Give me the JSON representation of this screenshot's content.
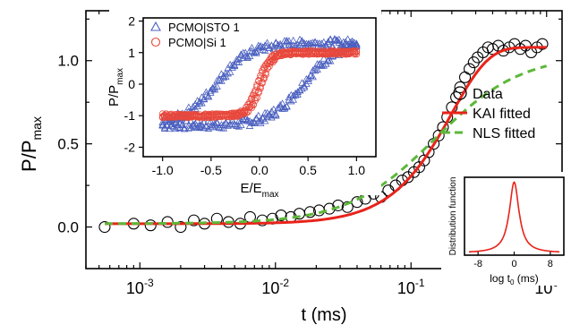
{
  "chart_data": [
    {
      "type": "scatter",
      "xscale": "log",
      "xlim": [
        0.0004,
        1.3
      ],
      "ylim": [
        -0.25,
        1.3
      ],
      "xlabel": "t (ms)",
      "ylabel_main": "P/P",
      "ylabel_sub": "max",
      "xticks": [
        {
          "value": 0.001,
          "base": "10",
          "exp": "-3"
        },
        {
          "value": 0.01,
          "base": "10",
          "exp": "-2"
        },
        {
          "value": 0.1,
          "base": "10",
          "exp": "-1"
        },
        {
          "value": 1,
          "base": "10",
          "exp": "0"
        }
      ],
      "yticks": [
        0.0,
        0.5,
        1.0
      ],
      "ytick_labels": [
        "0.0",
        "0.5",
        "1.0"
      ],
      "legend": [
        {
          "label": "Data",
          "marker": "open-circle",
          "color": "#000000"
        },
        {
          "label": "KAI fitted",
          "line": "solid",
          "color": "#e8231a"
        },
        {
          "label": "NLS fitted",
          "line": "dashed",
          "color": "#5cb839"
        }
      ],
      "series": [
        {
          "name": "Data",
          "color": "#000000",
          "x": [
            0.00055,
            0.0009,
            0.0012,
            0.0016,
            0.002,
            0.0025,
            0.003,
            0.0037,
            0.0045,
            0.0055,
            0.0065,
            0.008,
            0.0095,
            0.011,
            0.013,
            0.015,
            0.018,
            0.021,
            0.025,
            0.029,
            0.034,
            0.04,
            0.046,
            0.053,
            0.06,
            0.068,
            0.077,
            0.086,
            0.095,
            0.105,
            0.115,
            0.125,
            0.135,
            0.147,
            0.16,
            0.172,
            0.185,
            0.2,
            0.215,
            0.23,
            0.25,
            0.27,
            0.29,
            0.31,
            0.34,
            0.37,
            0.4,
            0.44,
            0.48,
            0.53,
            0.58,
            0.64,
            0.7,
            0.77,
            0.85,
            0.93
          ],
          "y": [
            0.0,
            0.02,
            0.01,
            0.03,
            0.0,
            0.04,
            0.02,
            0.05,
            0.03,
            0.02,
            0.06,
            0.04,
            0.05,
            0.07,
            0.06,
            0.08,
            0.09,
            0.1,
            0.11,
            0.13,
            0.12,
            0.15,
            0.17,
            0.2,
            0.18,
            0.22,
            0.25,
            0.28,
            0.3,
            0.33,
            0.36,
            0.4,
            0.45,
            0.5,
            0.55,
            0.6,
            0.66,
            0.72,
            0.78,
            0.84,
            0.9,
            0.95,
            0.99,
            1.02,
            1.05,
            1.08,
            1.07,
            1.09,
            1.06,
            1.08,
            1.1,
            1.07,
            1.09,
            1.05,
            1.08,
            1.1
          ]
        },
        {
          "name": "KAI fitted",
          "color": "#e8231a",
          "model": "kai",
          "x0": 0.00055,
          "x1": 1.0
        },
        {
          "name": "NLS fitted",
          "color": "#5cb839",
          "model": "nls",
          "x0": 0.00055,
          "x1": 1.0
        }
      ]
    },
    {
      "type": "scatter",
      "xlim": [
        -1.2,
        1.2
      ],
      "ylim": [
        -2.3,
        2.1
      ],
      "xlabel_main": "E/E",
      "xlabel_sub": "max",
      "ylabel_main": "P/P",
      "ylabel_sub": "max",
      "xticks": [
        -1.0,
        -0.5,
        0.0,
        0.5,
        1.0
      ],
      "xtick_labels": [
        "-1.0",
        "-0.5",
        "0.0",
        "0.5",
        "1.0"
      ],
      "yticks": [
        -2,
        -1,
        0,
        1,
        2
      ],
      "ytick_labels": [
        "-2",
        "-1",
        "0",
        "1",
        "2"
      ],
      "legend": [
        {
          "label": "PCMO|STO 1",
          "marker": "open-triangle",
          "color": "#4a5fbf"
        },
        {
          "label": "PCMO|Si 1",
          "marker": "open-circle",
          "color": "#e8483c"
        }
      ],
      "series": [
        {
          "name": "PCMO|STO 1",
          "color": "#4a5fbf",
          "loop": {
            "amp": 1.3,
            "coercive": 0.45,
            "width": 0.35,
            "offset": 0.0
          }
        },
        {
          "name": "PCMO|Si 1",
          "color": "#e8483c",
          "loop": {
            "amp": 1.0,
            "coercive": 0.02,
            "width": 0.12,
            "offset": 0.0
          }
        }
      ]
    },
    {
      "type": "line",
      "xlim": [
        -11,
        11
      ],
      "ylim": [
        0,
        1.1
      ],
      "xlabel_main": "log t",
      "xlabel_sub": "0",
      "xlabel_unit": " (ms)",
      "ylabel": "Distribution function",
      "xticks": [
        -8,
        0,
        8
      ],
      "xtick_labels": [
        "-8",
        "0",
        "8"
      ],
      "series": [
        {
          "name": "",
          "color": "#e8231a",
          "model": "lorentz",
          "center": 0,
          "gamma": 1.3
        }
      ]
    }
  ]
}
